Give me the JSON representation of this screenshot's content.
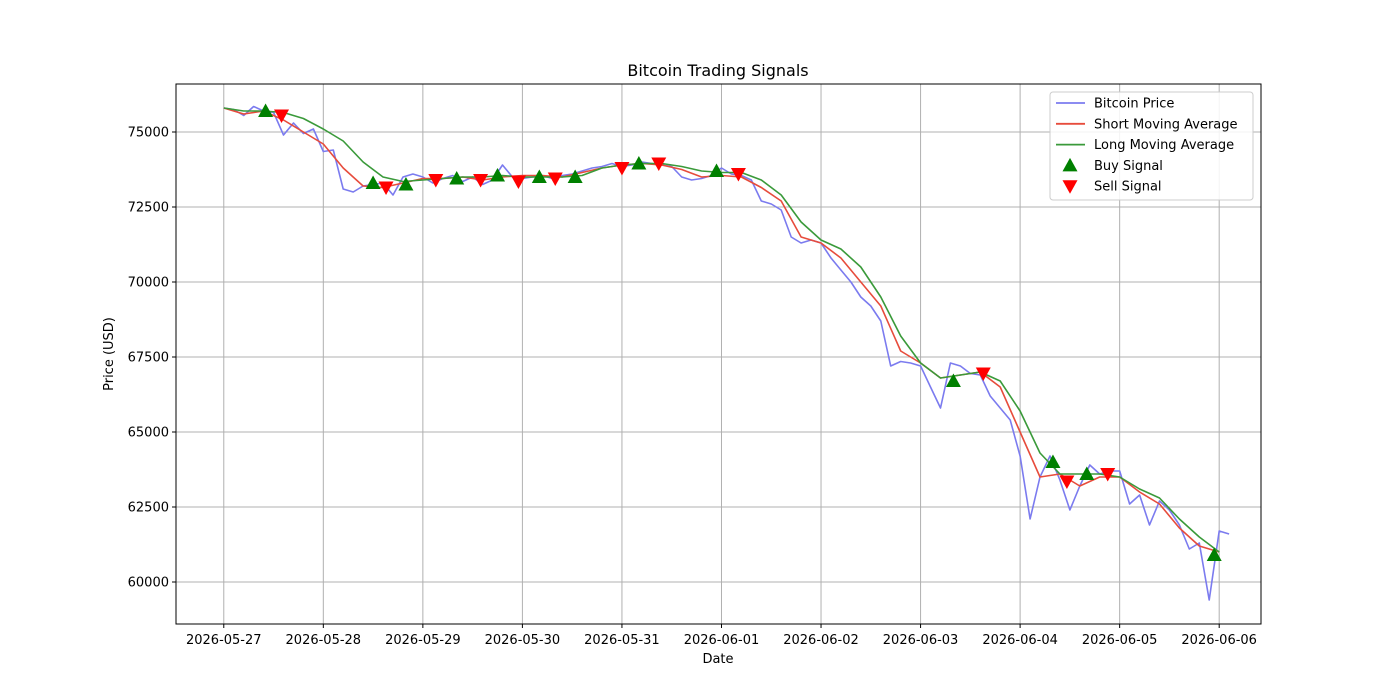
{
  "chart_data": {
    "type": "line",
    "title": "Bitcoin Trading Signals",
    "xlabel": "Date",
    "ylabel": "Price (USD)",
    "xlim": [
      -0.48,
      10.42
    ],
    "ylim": [
      58600,
      76600
    ],
    "grid": true,
    "legend_position": "top-right",
    "x_ticks": [
      {
        "x": 0,
        "label": "2026-05-27"
      },
      {
        "x": 1,
        "label": "2026-05-28"
      },
      {
        "x": 2,
        "label": "2026-05-29"
      },
      {
        "x": 3,
        "label": "2026-05-30"
      },
      {
        "x": 4,
        "label": "2026-05-31"
      },
      {
        "x": 5,
        "label": "2026-06-01"
      },
      {
        "x": 6,
        "label": "2026-06-02"
      },
      {
        "x": 7,
        "label": "2026-06-03"
      },
      {
        "x": 8,
        "label": "2026-06-04"
      },
      {
        "x": 9,
        "label": "2026-06-05"
      },
      {
        "x": 10,
        "label": "2026-06-06"
      }
    ],
    "y_ticks": [
      {
        "y": 60000,
        "label": "60000"
      },
      {
        "y": 62500,
        "label": "62500"
      },
      {
        "y": 65000,
        "label": "65000"
      },
      {
        "y": 67500,
        "label": "67500"
      },
      {
        "y": 70000,
        "label": "70000"
      },
      {
        "y": 72500,
        "label": "72500"
      },
      {
        "y": 75000,
        "label": "75000"
      }
    ],
    "series": [
      {
        "name": "Bitcoin Price",
        "color": "#7b7bef",
        "points": [
          [
            0,
            75800
          ],
          [
            0.1,
            75750
          ],
          [
            0.2,
            75550
          ],
          [
            0.3,
            75850
          ],
          [
            0.4,
            75700
          ],
          [
            0.5,
            75650
          ],
          [
            0.6,
            74900
          ],
          [
            0.7,
            75300
          ],
          [
            0.8,
            74950
          ],
          [
            0.9,
            75100
          ],
          [
            1.0,
            74350
          ],
          [
            1.1,
            74400
          ],
          [
            1.2,
            73100
          ],
          [
            1.3,
            73000
          ],
          [
            1.4,
            73200
          ],
          [
            1.5,
            73250
          ],
          [
            1.6,
            73300
          ],
          [
            1.7,
            72900
          ],
          [
            1.8,
            73500
          ],
          [
            1.9,
            73600
          ],
          [
            2.0,
            73500
          ],
          [
            2.1,
            73300
          ],
          [
            2.2,
            73450
          ],
          [
            2.3,
            73550
          ],
          [
            2.4,
            73350
          ],
          [
            2.5,
            73500
          ],
          [
            2.6,
            73250
          ],
          [
            2.7,
            73400
          ],
          [
            2.8,
            73900
          ],
          [
            2.9,
            73500
          ],
          [
            3.0,
            73450
          ],
          [
            3.1,
            73500
          ],
          [
            3.2,
            73550
          ],
          [
            3.3,
            73450
          ],
          [
            3.4,
            73550
          ],
          [
            3.5,
            73600
          ],
          [
            3.6,
            73700
          ],
          [
            3.7,
            73800
          ],
          [
            3.8,
            73850
          ],
          [
            3.9,
            73950
          ],
          [
            4.0,
            73850
          ],
          [
            4.1,
            73900
          ],
          [
            4.2,
            74000
          ],
          [
            4.3,
            73950
          ],
          [
            4.4,
            73900
          ],
          [
            4.5,
            73850
          ],
          [
            4.6,
            73500
          ],
          [
            4.7,
            73400
          ],
          [
            4.8,
            73450
          ],
          [
            4.9,
            73550
          ],
          [
            5.0,
            73800
          ],
          [
            5.1,
            73600
          ],
          [
            5.2,
            73550
          ],
          [
            5.3,
            73400
          ],
          [
            5.4,
            72700
          ],
          [
            5.5,
            72600
          ],
          [
            5.6,
            72400
          ],
          [
            5.7,
            71500
          ],
          [
            5.8,
            71300
          ],
          [
            5.9,
            71400
          ],
          [
            6.0,
            71300
          ],
          [
            6.1,
            70800
          ],
          [
            6.2,
            70400
          ],
          [
            6.3,
            70000
          ],
          [
            6.4,
            69500
          ],
          [
            6.5,
            69200
          ],
          [
            6.6,
            68700
          ],
          [
            6.7,
            67200
          ],
          [
            6.8,
            67350
          ],
          [
            6.9,
            67300
          ],
          [
            7.0,
            67200
          ],
          [
            7.1,
            66500
          ],
          [
            7.2,
            65800
          ],
          [
            7.3,
            67300
          ],
          [
            7.4,
            67200
          ],
          [
            7.5,
            66950
          ],
          [
            7.6,
            66900
          ],
          [
            7.7,
            66200
          ],
          [
            7.8,
            65800
          ],
          [
            7.9,
            65400
          ],
          [
            8.0,
            64200
          ],
          [
            8.1,
            62100
          ],
          [
            8.2,
            63500
          ],
          [
            8.3,
            64200
          ],
          [
            8.4,
            63400
          ],
          [
            8.5,
            62400
          ],
          [
            8.6,
            63200
          ],
          [
            8.7,
            63900
          ],
          [
            8.8,
            63600
          ],
          [
            8.9,
            63700
          ],
          [
            9.0,
            63700
          ],
          [
            9.1,
            62600
          ],
          [
            9.2,
            62900
          ],
          [
            9.3,
            61900
          ],
          [
            9.4,
            62700
          ],
          [
            9.5,
            62400
          ],
          [
            9.6,
            61900
          ],
          [
            9.7,
            61100
          ],
          [
            9.8,
            61300
          ],
          [
            9.9,
            59400
          ],
          [
            10.0,
            61700
          ],
          [
            10.1,
            61600
          ]
        ]
      },
      {
        "name": "Short Moving Average",
        "color": "#e74c3c",
        "points": [
          [
            0,
            75800
          ],
          [
            0.2,
            75600
          ],
          [
            0.4,
            75700
          ],
          [
            0.6,
            75400
          ],
          [
            0.8,
            75000
          ],
          [
            1.0,
            74600
          ],
          [
            1.2,
            73800
          ],
          [
            1.4,
            73200
          ],
          [
            1.6,
            73150
          ],
          [
            1.8,
            73300
          ],
          [
            2.0,
            73450
          ],
          [
            2.2,
            73450
          ],
          [
            2.4,
            73500
          ],
          [
            2.6,
            73400
          ],
          [
            2.8,
            73500
          ],
          [
            3.0,
            73550
          ],
          [
            3.2,
            73550
          ],
          [
            3.4,
            73500
          ],
          [
            3.6,
            73650
          ],
          [
            3.8,
            73800
          ],
          [
            4.0,
            73900
          ],
          [
            4.2,
            73950
          ],
          [
            4.4,
            73900
          ],
          [
            4.6,
            73750
          ],
          [
            4.8,
            73500
          ],
          [
            5.0,
            73550
          ],
          [
            5.2,
            73500
          ],
          [
            5.4,
            73150
          ],
          [
            5.6,
            72700
          ],
          [
            5.8,
            71500
          ],
          [
            6.0,
            71300
          ],
          [
            6.2,
            70800
          ],
          [
            6.4,
            70000
          ],
          [
            6.6,
            69200
          ],
          [
            6.8,
            67700
          ],
          [
            7.0,
            67300
          ],
          [
            7.2,
            66800
          ],
          [
            7.4,
            66900
          ],
          [
            7.6,
            67000
          ],
          [
            7.8,
            66500
          ],
          [
            8.0,
            65000
          ],
          [
            8.2,
            63500
          ],
          [
            8.4,
            63600
          ],
          [
            8.6,
            63200
          ],
          [
            8.8,
            63500
          ],
          [
            9.0,
            63500
          ],
          [
            9.2,
            63000
          ],
          [
            9.4,
            62600
          ],
          [
            9.6,
            61800
          ],
          [
            9.8,
            61200
          ],
          [
            10.0,
            61000
          ]
        ]
      },
      {
        "name": "Long Moving Average",
        "color": "#3a9a3a",
        "points": [
          [
            0,
            75800
          ],
          [
            0.2,
            75700
          ],
          [
            0.4,
            75700
          ],
          [
            0.6,
            75650
          ],
          [
            0.8,
            75450
          ],
          [
            1.0,
            75100
          ],
          [
            1.2,
            74700
          ],
          [
            1.4,
            74000
          ],
          [
            1.6,
            73500
          ],
          [
            1.8,
            73350
          ],
          [
            2.0,
            73400
          ],
          [
            2.2,
            73450
          ],
          [
            2.4,
            73500
          ],
          [
            2.6,
            73500
          ],
          [
            2.8,
            73550
          ],
          [
            3.0,
            73500
          ],
          [
            3.2,
            73500
          ],
          [
            3.4,
            73500
          ],
          [
            3.6,
            73550
          ],
          [
            3.8,
            73800
          ],
          [
            4.0,
            73900
          ],
          [
            4.2,
            73950
          ],
          [
            4.4,
            73950
          ],
          [
            4.6,
            73850
          ],
          [
            4.8,
            73700
          ],
          [
            5.0,
            73650
          ],
          [
            5.2,
            73650
          ],
          [
            5.4,
            73400
          ],
          [
            5.6,
            72900
          ],
          [
            5.8,
            72000
          ],
          [
            6.0,
            71400
          ],
          [
            6.2,
            71100
          ],
          [
            6.4,
            70500
          ],
          [
            6.6,
            69500
          ],
          [
            6.8,
            68200
          ],
          [
            7.0,
            67300
          ],
          [
            7.2,
            66800
          ],
          [
            7.4,
            66900
          ],
          [
            7.6,
            67000
          ],
          [
            7.8,
            66700
          ],
          [
            8.0,
            65700
          ],
          [
            8.2,
            64300
          ],
          [
            8.4,
            63600
          ],
          [
            8.6,
            63600
          ],
          [
            8.8,
            63600
          ],
          [
            9.0,
            63500
          ],
          [
            9.2,
            63100
          ],
          [
            9.4,
            62800
          ],
          [
            9.6,
            62100
          ],
          [
            9.8,
            61500
          ],
          [
            10.0,
            61000
          ]
        ]
      }
    ],
    "buy_signals": {
      "name": "Buy Signal",
      "color": "#008000",
      "points": [
        [
          0.42,
          75700
        ],
        [
          1.5,
          73300
        ],
        [
          1.83,
          73250
        ],
        [
          2.34,
          73450
        ],
        [
          2.75,
          73550
        ],
        [
          3.17,
          73500
        ],
        [
          3.53,
          73500
        ],
        [
          4.17,
          73950
        ],
        [
          4.95,
          73700
        ],
        [
          7.33,
          66700
        ],
        [
          8.33,
          64000
        ],
        [
          8.67,
          63600
        ],
        [
          9.95,
          60900
        ]
      ]
    },
    "sell_signals": {
      "name": "Sell Signal",
      "color": "#ff0000",
      "points": [
        [
          0.58,
          75550
        ],
        [
          1.63,
          73150
        ],
        [
          2.13,
          73400
        ],
        [
          2.58,
          73400
        ],
        [
          2.96,
          73350
        ],
        [
          3.33,
          73450
        ],
        [
          4.0,
          73800
        ],
        [
          4.37,
          73950
        ],
        [
          5.17,
          73600
        ],
        [
          7.63,
          66950
        ],
        [
          8.47,
          63350
        ],
        [
          8.88,
          63600
        ]
      ]
    }
  }
}
